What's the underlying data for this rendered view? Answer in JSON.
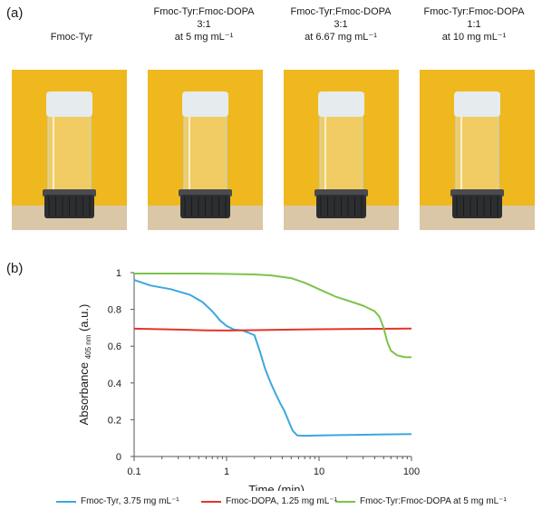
{
  "panel_a": {
    "letter": "(a)",
    "vials": [
      {
        "line1": "Fmoc-Tyr",
        "line2": "",
        "line3": ""
      },
      {
        "line1": "Fmoc-Tyr:Fmoc-DOPA",
        "line2": "3:1",
        "line3": "at 5 mg mL⁻¹"
      },
      {
        "line1": "Fmoc-Tyr:Fmoc-DOPA",
        "line2": "3:1",
        "line3": "at 6.67 mg mL⁻¹"
      },
      {
        "line1": "Fmoc-Tyr:Fmoc-DOPA",
        "line2": "1:1",
        "line3": "at 10 mg mL⁻¹"
      }
    ],
    "photo_colors": {
      "wall": "#efb81f",
      "bench": "#d9c7a8",
      "cap": "#2d2e30",
      "gel": "#e6ebee",
      "glass": "#c9d2d8"
    }
  },
  "panel_b": {
    "letter": "(b)",
    "chart_data": {
      "type": "line",
      "xlabel": "Time (min)",
      "ylabel": "Absorbance",
      "ylabel_sub": "405 nm",
      "ylabel_unit": "(a.u.)",
      "xscale": "log",
      "xlim": [
        0.1,
        100
      ],
      "ylim": [
        0,
        1
      ],
      "xticks": [
        "0.1",
        "1",
        "10",
        "100"
      ],
      "yticks": [
        "0",
        "0.2",
        "0.4",
        "0.6",
        "0.8",
        "1"
      ],
      "grid": false,
      "legend_position": "bottom",
      "series": [
        {
          "name": "Fmoc-Tyr, 3.75 mg mL⁻¹",
          "color": "#3ca7e0",
          "x": [
            0.1,
            0.15,
            0.25,
            0.4,
            0.55,
            0.7,
            0.85,
            1.0,
            1.2,
            1.5,
            2.0,
            2.3,
            2.6,
            3.0,
            3.4,
            3.8,
            4.2,
            4.7,
            5.2,
            5.8,
            7,
            10,
            20,
            50,
            100
          ],
          "y": [
            0.96,
            0.93,
            0.91,
            0.88,
            0.84,
            0.79,
            0.74,
            0.71,
            0.69,
            0.685,
            0.66,
            0.57,
            0.48,
            0.4,
            0.34,
            0.29,
            0.25,
            0.19,
            0.14,
            0.115,
            0.113,
            0.115,
            0.117,
            0.12,
            0.122
          ]
        },
        {
          "name": "Fmoc-DOPA, 1.25 mg mL⁻¹",
          "color": "#e2352a",
          "x": [
            0.1,
            0.3,
            0.6,
            1.0,
            2.0,
            5,
            10,
            30,
            100
          ],
          "y": [
            0.695,
            0.69,
            0.686,
            0.685,
            0.687,
            0.69,
            0.692,
            0.694,
            0.696
          ]
        },
        {
          "name": "Fmoc-Tyr:Fmoc-DOPA at 5 mg mL⁻¹",
          "color": "#7dc34a",
          "x": [
            0.1,
            0.5,
            1.0,
            2.0,
            3.0,
            5,
            7,
            10,
            15,
            20,
            30,
            40,
            45,
            50,
            55,
            60,
            70,
            85,
            100
          ],
          "y": [
            0.995,
            0.995,
            0.993,
            0.99,
            0.985,
            0.97,
            0.945,
            0.91,
            0.87,
            0.85,
            0.82,
            0.79,
            0.76,
            0.7,
            0.62,
            0.575,
            0.55,
            0.54,
            0.54
          ]
        }
      ]
    }
  }
}
